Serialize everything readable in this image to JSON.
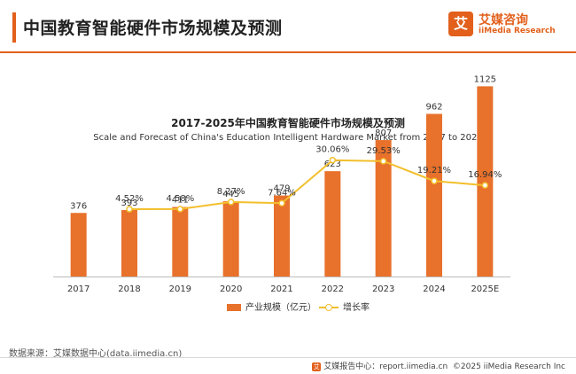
{
  "header": {
    "title": "中国教育智能硬件市场规模及预测",
    "brand": {
      "logo_glyph": "艾",
      "name": "艾媒咨询",
      "sub": "iiMedia Research"
    },
    "accent_color": "#e2601c"
  },
  "chart_data": {
    "type": "bar",
    "title": "2017-2025年中国教育智能硬件市场规模及预测",
    "subtitle": "Scale and Forecast of China's Education Intelligent Hardware Market from 2017 to 2025",
    "categories": [
      "2017",
      "2018",
      "2019",
      "2020",
      "2021",
      "2022",
      "2023",
      "2024",
      "2025E"
    ],
    "series": [
      {
        "name": "产业规模（亿元）",
        "type": "bar",
        "color": "#e8712b",
        "values": [
          376,
          393,
          411,
          445,
          479,
          623,
          807,
          962,
          1125
        ]
      },
      {
        "name": "增长率",
        "type": "line",
        "color": "#f2bf2c",
        "values": [
          null,
          4.52,
          4.58,
          8.27,
          7.64,
          30.06,
          29.53,
          19.21,
          16.94
        ],
        "labels": [
          "",
          "4.52%",
          "4.58%",
          "8.27%",
          "7.64%",
          "30.06%",
          "29.53%",
          "19.21%",
          "16.94%"
        ]
      }
    ],
    "ylim": [
      0,
      1300
    ],
    "y2lim": [
      -25,
      35
    ],
    "grid": false,
    "legend_position": "bottom"
  },
  "footer": {
    "source": "数据来源：艾媒数据中心(data.iimedia.cn)",
    "icon_glyph": "艾",
    "report": "艾媒报告中心：report.iimedia.cn",
    "copyright": "©2025  iiMedia Research  Inc"
  }
}
